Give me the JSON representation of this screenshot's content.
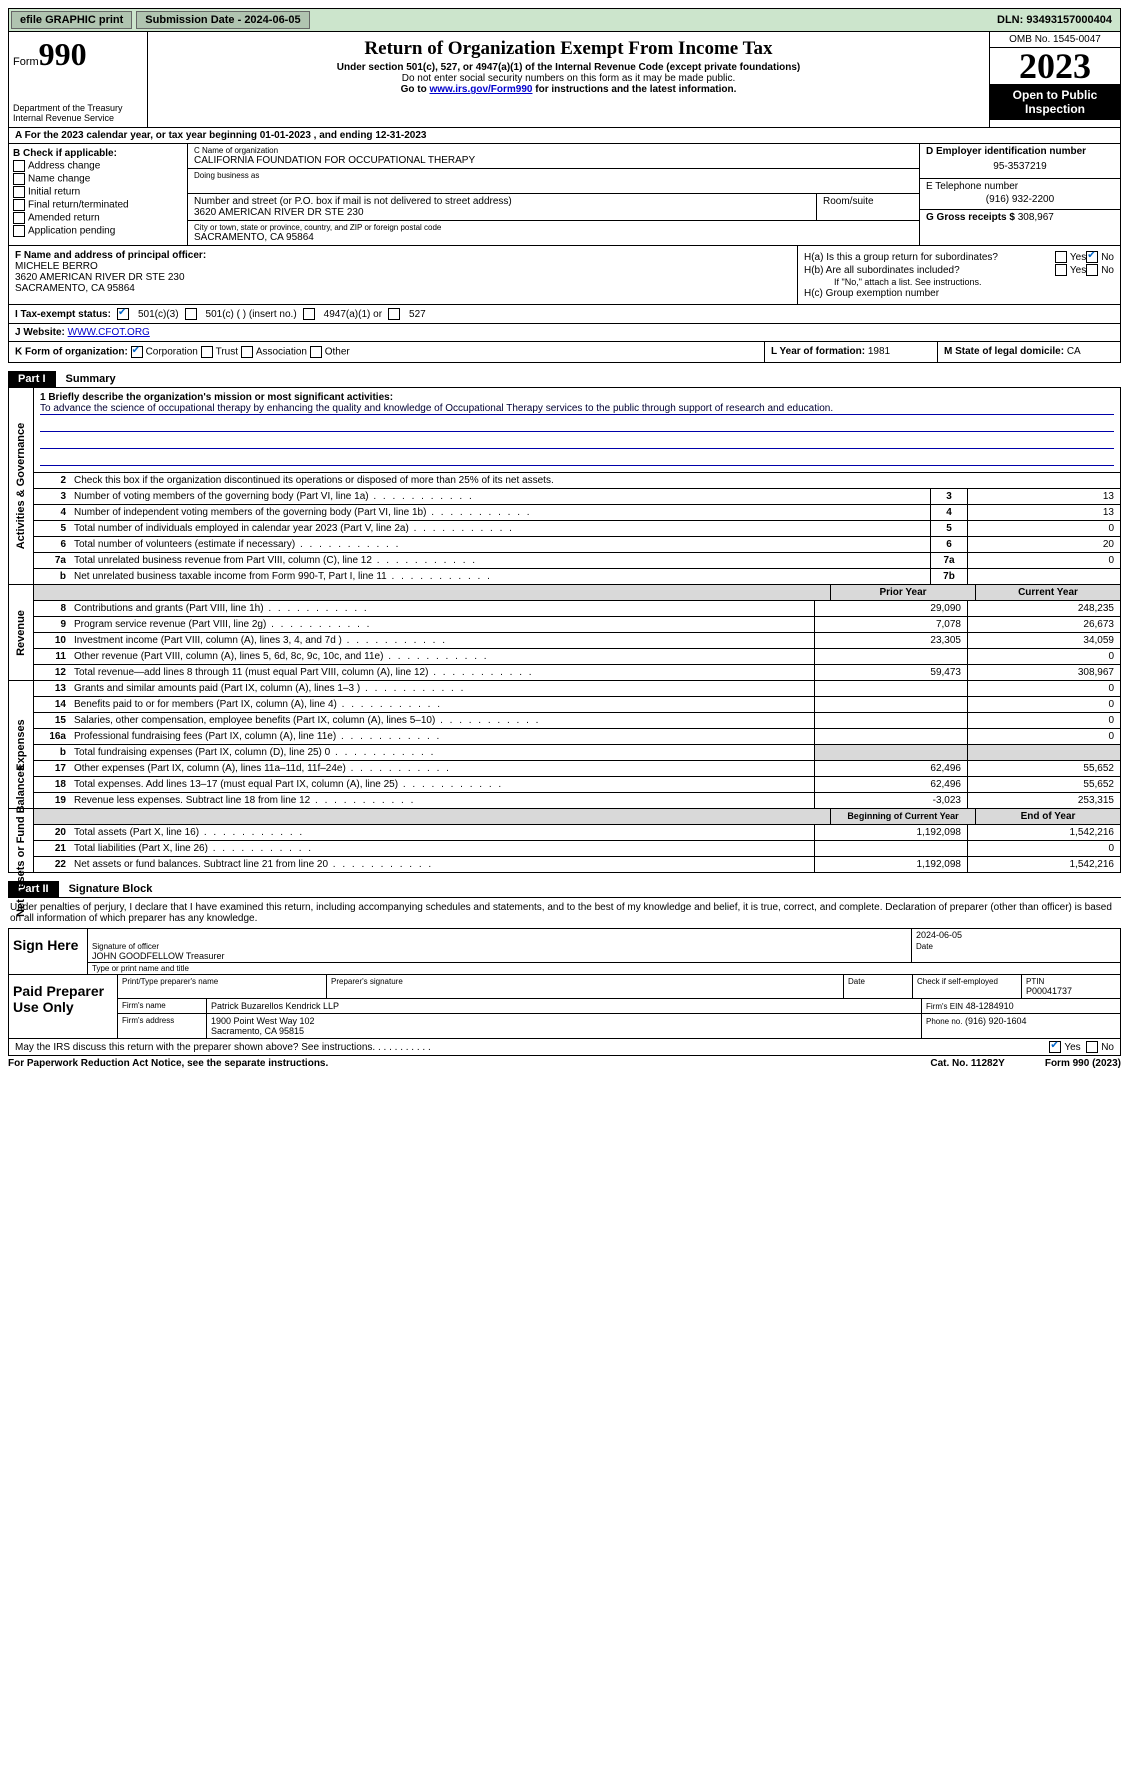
{
  "topbar": {
    "efile": "efile GRAPHIC print",
    "submission": "Submission Date - 2024-06-05",
    "dln": "DLN: 93493157000404"
  },
  "header": {
    "form_label": "Form",
    "form_no": "990",
    "dept": "Department of the Treasury Internal Revenue Service",
    "title": "Return of Organization Exempt From Income Tax",
    "sub1": "Under section 501(c), 527, or 4947(a)(1) of the Internal Revenue Code (except private foundations)",
    "sub2": "Do not enter social security numbers on this form as it may be made public.",
    "sub3_pre": "Go to ",
    "sub3_link": "www.irs.gov/Form990",
    "sub3_post": " for instructions and the latest information.",
    "omb": "OMB No. 1545-0047",
    "year": "2023",
    "open": "Open to Public Inspection"
  },
  "row_a": "A For the 2023 calendar year, or tax year beginning 01-01-2023   , and ending 12-31-2023",
  "box_b": {
    "label": "B Check if applicable:",
    "items": [
      "Address change",
      "Name change",
      "Initial return",
      "Final return/terminated",
      "Amended return",
      "Application pending"
    ]
  },
  "box_c": {
    "name_lbl": "C Name of organization",
    "name": "CALIFORNIA FOUNDATION FOR OCCUPATIONAL THERAPY",
    "dba_lbl": "Doing business as",
    "addr_lbl": "Number and street (or P.O. box if mail is not delivered to street address)",
    "room_lbl": "Room/suite",
    "addr": "3620 AMERICAN RIVER DR STE 230",
    "city_lbl": "City or town, state or province, country, and ZIP or foreign postal code",
    "city": "SACRAMENTO, CA  95864"
  },
  "box_d": {
    "ein_lbl": "D Employer identification number",
    "ein": "95-3537219",
    "tel_lbl": "E Telephone number",
    "tel": "(916) 932-2200",
    "gross_lbl": "G Gross receipts $",
    "gross": "308,967"
  },
  "box_f": {
    "lbl": "F Name and address of principal officer:",
    "name": "MICHELE BERRO",
    "addr1": "3620 AMERICAN RIVER DR STE 230",
    "addr2": "SACRAMENTO, CA  95864"
  },
  "box_h": {
    "ha": "H(a)  Is this a group return for subordinates?",
    "hb": "H(b)  Are all subordinates included?",
    "hb_note": "If \"No,\" attach a list. See instructions.",
    "hc": "H(c)  Group exemption number",
    "yes": "Yes",
    "no": "No"
  },
  "box_i": {
    "lbl": "I   Tax-exempt status:",
    "o1": "501(c)(3)",
    "o2": "501(c) (  ) (insert no.)",
    "o3": "4947(a)(1) or",
    "o4": "527"
  },
  "box_j": {
    "lbl": "J   Website:",
    "val": "WWW.CFOT.ORG"
  },
  "box_k": {
    "lbl": "K Form of organization:",
    "o1": "Corporation",
    "o2": "Trust",
    "o3": "Association",
    "o4": "Other"
  },
  "box_l": {
    "lbl": "L Year of formation:",
    "val": "1981"
  },
  "box_m": {
    "lbl": "M State of legal domicile:",
    "val": "CA"
  },
  "part1": {
    "hdr_part": "Part I",
    "hdr_title": "Summary",
    "mission_lbl": "1   Briefly describe the organization's mission or most significant activities:",
    "mission": "To advance the science of occupational therapy by enhancing the quality and knowledge of Occupational Therapy services to the public through support of research and education.",
    "line2": "Check this box      if the organization discontinued its operations or disposed of more than 25% of its net assets.",
    "vlabels": {
      "ag": "Activities & Governance",
      "rev": "Revenue",
      "exp": "Expenses",
      "na": "Net Assets or Fund Balances"
    },
    "rows_ag": [
      {
        "n": "3",
        "t": "Number of voting members of the governing body (Part VI, line 1a)",
        "box": "3",
        "v": "13"
      },
      {
        "n": "4",
        "t": "Number of independent voting members of the governing body (Part VI, line 1b)",
        "box": "4",
        "v": "13"
      },
      {
        "n": "5",
        "t": "Total number of individuals employed in calendar year 2023 (Part V, line 2a)",
        "box": "5",
        "v": "0"
      },
      {
        "n": "6",
        "t": "Total number of volunteers (estimate if necessary)",
        "box": "6",
        "v": "20"
      },
      {
        "n": "7a",
        "t": "Total unrelated business revenue from Part VIII, column (C), line 12",
        "box": "7a",
        "v": "0"
      },
      {
        "n": "b",
        "t": "Net unrelated business taxable income from Form 990-T, Part I, line 11",
        "box": "7b",
        "v": ""
      }
    ],
    "hdr_prior": "Prior Year",
    "hdr_curr": "Current Year",
    "rows_rev": [
      {
        "n": "8",
        "t": "Contributions and grants (Part VIII, line 1h)",
        "p": "29,090",
        "c": "248,235"
      },
      {
        "n": "9",
        "t": "Program service revenue (Part VIII, line 2g)",
        "p": "7,078",
        "c": "26,673"
      },
      {
        "n": "10",
        "t": "Investment income (Part VIII, column (A), lines 3, 4, and 7d )",
        "p": "23,305",
        "c": "34,059"
      },
      {
        "n": "11",
        "t": "Other revenue (Part VIII, column (A), lines 5, 6d, 8c, 9c, 10c, and 11e)",
        "p": "",
        "c": "0"
      },
      {
        "n": "12",
        "t": "Total revenue—add lines 8 through 11 (must equal Part VIII, column (A), line 12)",
        "p": "59,473",
        "c": "308,967"
      }
    ],
    "rows_exp": [
      {
        "n": "13",
        "t": "Grants and similar amounts paid (Part IX, column (A), lines 1–3 )",
        "p": "",
        "c": "0"
      },
      {
        "n": "14",
        "t": "Benefits paid to or for members (Part IX, column (A), line 4)",
        "p": "",
        "c": "0"
      },
      {
        "n": "15",
        "t": "Salaries, other compensation, employee benefits (Part IX, column (A), lines 5–10)",
        "p": "",
        "c": "0"
      },
      {
        "n": "16a",
        "t": "Professional fundraising fees (Part IX, column (A), line 11e)",
        "p": "",
        "c": "0"
      },
      {
        "n": "b",
        "t": "Total fundraising expenses (Part IX, column (D), line 25) 0",
        "p": "__shade__",
        "c": "__shade__"
      },
      {
        "n": "17",
        "t": "Other expenses (Part IX, column (A), lines 11a–11d, 11f–24e)",
        "p": "62,496",
        "c": "55,652"
      },
      {
        "n": "18",
        "t": "Total expenses. Add lines 13–17 (must equal Part IX, column (A), line 25)",
        "p": "62,496",
        "c": "55,652"
      },
      {
        "n": "19",
        "t": "Revenue less expenses. Subtract line 18 from line 12",
        "p": "-3,023",
        "c": "253,315"
      }
    ],
    "hdr_boy": "Beginning of Current Year",
    "hdr_eoy": "End of Year",
    "rows_na": [
      {
        "n": "20",
        "t": "Total assets (Part X, line 16)",
        "p": "1,192,098",
        "c": "1,542,216"
      },
      {
        "n": "21",
        "t": "Total liabilities (Part X, line 26)",
        "p": "",
        "c": "0"
      },
      {
        "n": "22",
        "t": "Net assets or fund balances. Subtract line 21 from line 20",
        "p": "1,192,098",
        "c": "1,542,216"
      }
    ]
  },
  "part2": {
    "hdr_part": "Part II",
    "hdr_title": "Signature Block",
    "decl": "Under penalties of perjury, I declare that I have examined this return, including accompanying schedules and statements, and to the best of my knowledge and belief, it is true, correct, and complete. Declaration of preparer (other than officer) is based on all information of which preparer has any knowledge.",
    "sign_here": "Sign Here",
    "sig_officer": "Signature of officer",
    "officer": "JOHN GOODFELLOW  Treasurer",
    "type_name": "Type or print name and title",
    "date": "Date",
    "date_val": "2024-06-05",
    "paid": "Paid Preparer Use Only",
    "prep_name_lbl": "Print/Type preparer's name",
    "prep_sig_lbl": "Preparer's signature",
    "chk_lbl": "Check       if self-employed",
    "ptin_lbl": "PTIN",
    "ptin": "P00041737",
    "firm_name_lbl": "Firm's name",
    "firm_name": "Patrick Buzarellos Kendrick LLP",
    "firm_ein_lbl": "Firm's EIN",
    "firm_ein": "48-1284910",
    "firm_addr_lbl": "Firm's address",
    "firm_addr1": "1900 Point West Way 102",
    "firm_addr2": "Sacramento, CA  95815",
    "phone_lbl": "Phone no.",
    "phone": "(916) 920-1604",
    "may": "May the IRS discuss this return with the preparer shown above? See instructions.",
    "yes": "Yes",
    "no": "No"
  },
  "footer": {
    "pra": "For Paperwork Reduction Act Notice, see the separate instructions.",
    "cat": "Cat. No. 11282Y",
    "form": "Form 990 (2023)"
  }
}
